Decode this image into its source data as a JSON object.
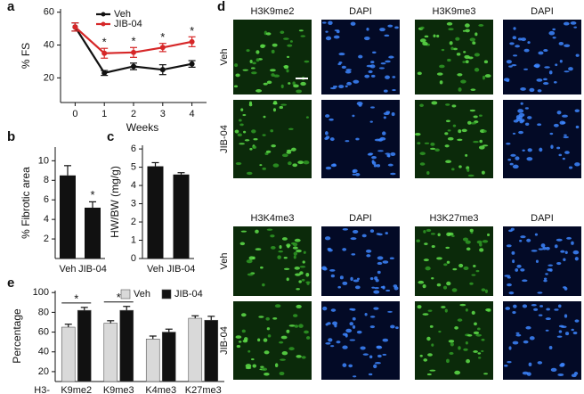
{
  "chart_data": [
    {
      "type": "line",
      "letter": "a",
      "ylabel": "% FS",
      "xlabel": "Weeks",
      "x": [
        0,
        1,
        2,
        3,
        4
      ],
      "xlim": [
        -0.5,
        4.5
      ],
      "xticks": [
        0,
        1,
        2,
        3,
        4
      ],
      "ylim": [
        5,
        62
      ],
      "yticks": [
        20,
        40,
        60
      ],
      "series": [
        {
          "name": "Veh",
          "color": "#111111",
          "values": [
            51,
            23,
            27,
            25,
            28.5
          ],
          "errors": [
            2.5,
            1.5,
            2,
            3,
            2
          ]
        },
        {
          "name": "JIB-04",
          "color": "#d62728",
          "values": [
            51,
            35,
            35.5,
            38.5,
            42
          ],
          "errors": [
            2.5,
            3,
            3,
            2.5,
            3
          ]
        }
      ],
      "annotations": [
        {
          "text": "*",
          "x": 1
        },
        {
          "text": "*",
          "x": 2
        },
        {
          "text": "*",
          "x": 3
        },
        {
          "text": "*",
          "x": 4
        }
      ]
    },
    {
      "type": "bar",
      "letter": "b",
      "ylabel": "% Fibrotic area",
      "color": "#111111",
      "categories": [
        "Veh",
        "JIB-04"
      ],
      "values": [
        8.5,
        5.2
      ],
      "errors": [
        1.0,
        0.6
      ],
      "ylim": [
        0,
        11.4
      ],
      "yticks": [
        2,
        4,
        6,
        8,
        10
      ],
      "annotations": [
        {
          "text": "*",
          "category": 1
        }
      ]
    },
    {
      "type": "bar",
      "letter": "c",
      "ylabel": "HW/BW (mg/g)",
      "color": "#111111",
      "categories": [
        "Veh",
        "JIB-04"
      ],
      "values": [
        5.05,
        4.6
      ],
      "errors": [
        0.2,
        0.1
      ],
      "ylim": [
        0,
        6.2
      ],
      "yticks": [
        0,
        1,
        2,
        3,
        4,
        5,
        6
      ],
      "annotations": []
    },
    {
      "type": "grouped-bar",
      "letter": "e",
      "ylabel": "Percentage",
      "prefix": "H3-",
      "categories": [
        "K9me2",
        "K9me3",
        "K4me3",
        "K27me3"
      ],
      "ylim": [
        10,
        102
      ],
      "yticks": [
        20,
        40,
        60,
        80,
        100
      ],
      "series": [
        {
          "name": "Veh",
          "color": "#d9d9d9",
          "values": [
            65,
            69,
            53,
            74
          ],
          "errors": [
            3,
            2.5,
            3,
            2.5
          ]
        },
        {
          "name": "JIB-04",
          "color": "#111111",
          "values": [
            82,
            82,
            60,
            72
          ],
          "errors": [
            3,
            4,
            3,
            4
          ]
        }
      ],
      "annotations": [
        {
          "text": "*",
          "category": 0
        },
        {
          "text": "*",
          "category": 1
        }
      ]
    }
  ],
  "micrographs": {
    "letter": "d",
    "blocks": [
      {
        "headers": [
          "H3K9me2",
          "DAPI",
          "H3K9me3",
          "DAPI"
        ],
        "rows": [
          "Veh",
          "JIB-04"
        ]
      },
      {
        "headers": [
          "H3K4me3",
          "DAPI",
          "H3K27me3",
          "DAPI"
        ],
        "rows": [
          "Veh",
          "JIB-04"
        ]
      }
    ]
  }
}
